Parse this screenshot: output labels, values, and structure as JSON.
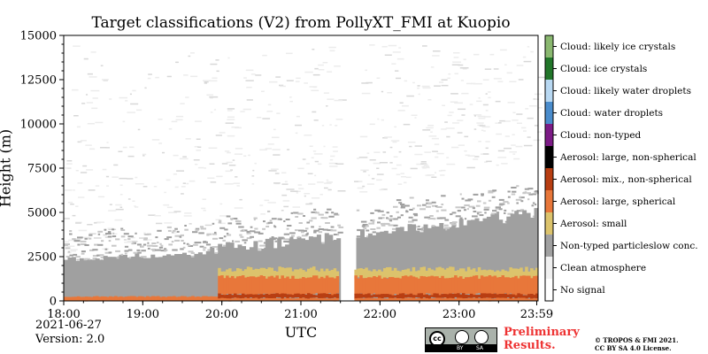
{
  "chart_data": {
    "type": "heatmap",
    "title": "Target classifications (V2) from PollyXT_FMI at Kuopio",
    "xlabel": "UTC",
    "ylabel": "Height (m)",
    "x_range": [
      "18:00",
      "23:59"
    ],
    "x_tick_labels": [
      "18:00",
      "19:00",
      "20:00",
      "21:00",
      "22:00",
      "23:00",
      "23:59"
    ],
    "x_tick_hours": [
      18,
      19,
      20,
      21,
      22,
      23,
      23.983
    ],
    "ylim": [
      0,
      15000
    ],
    "y_ticks": [
      0,
      2500,
      5000,
      7500,
      10000,
      12500,
      15000
    ],
    "data_gap_hours": [
      21.5,
      21.67
    ],
    "classes": [
      {
        "label": "No signal",
        "color": "#ffffff"
      },
      {
        "label": "Clean atmosphere",
        "color": "#f0f0f0"
      },
      {
        "label": "Non-typed particleslow conc.",
        "color": "#a0a0a0"
      },
      {
        "label": "Aerosol: small",
        "color": "#dcc36c"
      },
      {
        "label": "Aerosol: large, spherical",
        "color": "#e8773a"
      },
      {
        "label": "Aerosol: mix., non-spherical",
        "color": "#b83e12"
      },
      {
        "label": "Aerosol: large, non-spherical",
        "color": "#000000"
      },
      {
        "label": "Cloud: non-typed",
        "color": "#7c1b86"
      },
      {
        "label": "Cloud: water droplets",
        "color": "#4a8ccc"
      },
      {
        "label": "Cloud: likely water droplets",
        "color": "#b8d8f2"
      },
      {
        "label": "Cloud: ice crystals",
        "color": "#22762a"
      },
      {
        "label": "Cloud: likely ice crystals",
        "color": "#8ab870"
      }
    ],
    "grid": false
  },
  "footer": {
    "date": "2021-06-27",
    "version": "Version: 2.0",
    "preliminary_line1": "Preliminary",
    "preliminary_line2": "Results.",
    "copyright_line1": "© TROPOS & FMI 2021.",
    "copyright_line2": "CC BY SA 4.0 License.",
    "cc_badge": "cc",
    "cc_by": "BY",
    "cc_sa": "SA"
  }
}
